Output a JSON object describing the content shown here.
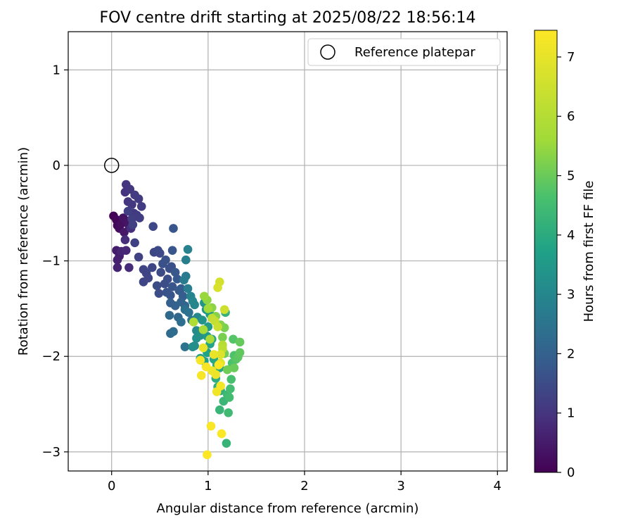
{
  "chart_data": {
    "type": "scatter",
    "title": "FOV centre drift starting at 2025/08/22 18:56:14",
    "xlabel": "Angular distance from reference (arcmin)",
    "ylabel": "Rotation from reference (arcmin)",
    "xlim": [
      -0.45,
      4.1
    ],
    "ylim": [
      -3.2,
      1.4
    ],
    "xticks": [
      0,
      1,
      2,
      3,
      4
    ],
    "xtick_labels": [
      "0",
      "1",
      "2",
      "3",
      "4"
    ],
    "yticks": [
      1,
      0,
      -1,
      -2,
      -3
    ],
    "ytick_labels": [
      "1",
      "0",
      "−1",
      "−2",
      "−3"
    ],
    "grid": true,
    "legend": {
      "placement": "top-right",
      "entries": [
        "Reference platepar"
      ]
    },
    "reference_point": {
      "x": 0,
      "y": 0,
      "label": "Reference platepar"
    },
    "colormap": "viridis",
    "colorbar": {
      "label": "Hours from first FF file",
      "min": 0,
      "max": 7.45,
      "ticks": [
        0,
        1,
        2,
        3,
        4,
        5,
        6,
        7
      ],
      "tick_labels": [
        "0",
        "1",
        "2",
        "3",
        "4",
        "5",
        "6",
        "7"
      ]
    },
    "points": [
      {
        "x": 0.02,
        "y": -0.53,
        "h": 0.05
      },
      {
        "x": 0.05,
        "y": -0.57,
        "h": 0.1
      },
      {
        "x": 0.06,
        "y": -0.63,
        "h": 0.15
      },
      {
        "x": 0.08,
        "y": -0.66,
        "h": 0.2
      },
      {
        "x": 0.1,
        "y": -0.61,
        "h": 0.25
      },
      {
        "x": 0.12,
        "y": -0.55,
        "h": 0.3
      },
      {
        "x": 0.15,
        "y": -0.58,
        "h": 0.35
      },
      {
        "x": 0.18,
        "y": -0.63,
        "h": 0.4
      },
      {
        "x": 0.13,
        "y": -0.7,
        "h": 0.45
      },
      {
        "x": 0.05,
        "y": -0.89,
        "h": 0.5
      },
      {
        "x": 0.08,
        "y": -0.95,
        "h": 0.55
      },
      {
        "x": 0.06,
        "y": -0.99,
        "h": 0.6
      },
      {
        "x": 0.06,
        "y": -1.07,
        "h": 0.65
      },
      {
        "x": 0.1,
        "y": -0.9,
        "h": 0.7
      },
      {
        "x": 0.15,
        "y": -0.89,
        "h": 0.75
      },
      {
        "x": 0.18,
        "y": -1.07,
        "h": 0.8
      },
      {
        "x": 0.14,
        "y": -0.78,
        "h": 0.85
      },
      {
        "x": 0.2,
        "y": -0.66,
        "h": 0.9
      },
      {
        "x": 0.14,
        "y": -0.28,
        "h": 0.95
      },
      {
        "x": 0.15,
        "y": -0.2,
        "h": 1.0
      },
      {
        "x": 0.19,
        "y": -0.25,
        "h": 1.02
      },
      {
        "x": 0.17,
        "y": -0.38,
        "h": 1.04
      },
      {
        "x": 0.21,
        "y": -0.41,
        "h": 1.06
      },
      {
        "x": 0.23,
        "y": -0.5,
        "h": 1.08
      },
      {
        "x": 0.24,
        "y": -0.31,
        "h": 1.1
      },
      {
        "x": 0.28,
        "y": -0.35,
        "h": 1.12
      },
      {
        "x": 0.26,
        "y": -0.52,
        "h": 1.14
      },
      {
        "x": 0.29,
        "y": -0.55,
        "h": 1.16
      },
      {
        "x": 0.31,
        "y": -0.43,
        "h": 1.18
      },
      {
        "x": 0.21,
        "y": -0.56,
        "h": 1.2
      },
      {
        "x": 0.17,
        "y": -0.48,
        "h": 1.22
      },
      {
        "x": 0.22,
        "y": -0.62,
        "h": 1.24
      },
      {
        "x": 0.24,
        "y": -0.81,
        "h": 1.26
      },
      {
        "x": 0.28,
        "y": -0.96,
        "h": 1.28
      },
      {
        "x": 0.33,
        "y": -1.09,
        "h": 1.3
      },
      {
        "x": 0.36,
        "y": -1.13,
        "h": 1.32
      },
      {
        "x": 0.33,
        "y": -1.22,
        "h": 1.34
      },
      {
        "x": 0.38,
        "y": -1.18,
        "h": 1.36
      },
      {
        "x": 0.42,
        "y": -1.07,
        "h": 1.38
      },
      {
        "x": 0.44,
        "y": -0.91,
        "h": 1.4
      },
      {
        "x": 0.43,
        "y": -0.64,
        "h": 1.42
      },
      {
        "x": 0.48,
        "y": -0.89,
        "h": 1.44
      },
      {
        "x": 0.5,
        "y": -0.92,
        "h": 1.46
      },
      {
        "x": 0.51,
        "y": -1.12,
        "h": 1.48
      },
      {
        "x": 0.47,
        "y": -1.26,
        "h": 1.5
      },
      {
        "x": 0.49,
        "y": -1.34,
        "h": 1.52
      },
      {
        "x": 0.55,
        "y": -1.24,
        "h": 1.54
      },
      {
        "x": 0.58,
        "y": -1.19,
        "h": 1.56
      },
      {
        "x": 0.6,
        "y": -1.08,
        "h": 1.58
      },
      {
        "x": 0.62,
        "y": -1.06,
        "h": 1.6
      },
      {
        "x": 0.56,
        "y": -0.99,
        "h": 1.62
      },
      {
        "x": 0.53,
        "y": -1.03,
        "h": 1.64
      },
      {
        "x": 0.57,
        "y": -1.33,
        "h": 1.66
      },
      {
        "x": 0.61,
        "y": -1.36,
        "h": 1.68
      },
      {
        "x": 0.63,
        "y": -1.27,
        "h": 1.7
      },
      {
        "x": 0.63,
        "y": -0.89,
        "h": 1.72
      },
      {
        "x": 0.64,
        "y": -0.66,
        "h": 1.74
      },
      {
        "x": 0.66,
        "y": -1.12,
        "h": 1.76
      },
      {
        "x": 0.68,
        "y": -1.19,
        "h": 1.78
      },
      {
        "x": 0.7,
        "y": -1.31,
        "h": 1.8
      },
      {
        "x": 0.72,
        "y": -1.29,
        "h": 1.85
      },
      {
        "x": 0.74,
        "y": -1.37,
        "h": 1.9
      },
      {
        "x": 0.61,
        "y": -1.44,
        "h": 1.95
      },
      {
        "x": 0.66,
        "y": -1.47,
        "h": 2.0
      },
      {
        "x": 0.72,
        "y": -1.43,
        "h": 2.05
      },
      {
        "x": 0.76,
        "y": -1.47,
        "h": 2.1
      },
      {
        "x": 0.69,
        "y": -1.59,
        "h": 2.15
      },
      {
        "x": 0.6,
        "y": -1.57,
        "h": 2.2
      },
      {
        "x": 0.61,
        "y": -1.76,
        "h": 2.25
      },
      {
        "x": 0.64,
        "y": -1.74,
        "h": 2.3
      },
      {
        "x": 0.72,
        "y": -1.64,
        "h": 2.35
      },
      {
        "x": 0.76,
        "y": -1.51,
        "h": 2.4
      },
      {
        "x": 0.8,
        "y": -1.54,
        "h": 2.45
      },
      {
        "x": 0.76,
        "y": -1.9,
        "h": 2.5
      },
      {
        "x": 0.83,
        "y": -1.62,
        "h": 2.55
      },
      {
        "x": 0.85,
        "y": -1.63,
        "h": 2.6
      },
      {
        "x": 0.77,
        "y": -1.16,
        "h": 2.65
      },
      {
        "x": 0.75,
        "y": -1.2,
        "h": 2.7
      },
      {
        "x": 0.79,
        "y": -1.29,
        "h": 2.75
      },
      {
        "x": 0.77,
        "y": -0.99,
        "h": 2.8
      },
      {
        "x": 0.79,
        "y": -0.88,
        "h": 2.85
      },
      {
        "x": 0.82,
        "y": -1.37,
        "h": 2.9
      },
      {
        "x": 0.84,
        "y": -1.42,
        "h": 2.95
      },
      {
        "x": 0.86,
        "y": -1.46,
        "h": 3.0
      },
      {
        "x": 0.89,
        "y": -1.59,
        "h": 3.05
      },
      {
        "x": 0.88,
        "y": -1.73,
        "h": 3.1
      },
      {
        "x": 0.86,
        "y": -1.89,
        "h": 3.15
      },
      {
        "x": 0.84,
        "y": -1.9,
        "h": 3.2
      },
      {
        "x": 0.88,
        "y": -1.81,
        "h": 3.25
      },
      {
        "x": 0.92,
        "y": -1.78,
        "h": 3.3
      },
      {
        "x": 0.94,
        "y": -1.62,
        "h": 3.35
      },
      {
        "x": 0.96,
        "y": -1.44,
        "h": 3.4
      },
      {
        "x": 0.98,
        "y": -1.51,
        "h": 3.45
      },
      {
        "x": 0.99,
        "y": -1.79,
        "h": 3.5
      },
      {
        "x": 1.0,
        "y": -1.69,
        "h": 3.55
      },
      {
        "x": 1.02,
        "y": -1.56,
        "h": 3.6
      },
      {
        "x": 0.92,
        "y": -2.02,
        "h": 3.65
      },
      {
        "x": 0.96,
        "y": -2.05,
        "h": 3.7
      },
      {
        "x": 0.99,
        "y": -1.96,
        "h": 3.75
      },
      {
        "x": 1.02,
        "y": -1.87,
        "h": 3.8
      },
      {
        "x": 1.04,
        "y": -1.82,
        "h": 3.85
      },
      {
        "x": 1.06,
        "y": -2.03,
        "h": 3.9
      },
      {
        "x": 1.09,
        "y": -2.09,
        "h": 3.95
      },
      {
        "x": 1.12,
        "y": -2.12,
        "h": 4.0
      },
      {
        "x": 1.08,
        "y": -2.23,
        "h": 4.05
      },
      {
        "x": 1.1,
        "y": -2.32,
        "h": 4.1
      },
      {
        "x": 1.13,
        "y": -2.36,
        "h": 4.15
      },
      {
        "x": 1.18,
        "y": -1.54,
        "h": 4.2
      },
      {
        "x": 1.19,
        "y": -2.91,
        "h": 4.25
      },
      {
        "x": 1.12,
        "y": -2.56,
        "h": 4.3
      },
      {
        "x": 1.16,
        "y": -2.47,
        "h": 4.35
      },
      {
        "x": 1.2,
        "y": -2.4,
        "h": 4.4
      },
      {
        "x": 1.21,
        "y": -2.59,
        "h": 4.45
      },
      {
        "x": 1.22,
        "y": -2.43,
        "h": 4.5
      },
      {
        "x": 1.23,
        "y": -2.34,
        "h": 4.55
      },
      {
        "x": 1.24,
        "y": -2.24,
        "h": 4.6
      },
      {
        "x": 1.25,
        "y": -2.07,
        "h": 4.65
      },
      {
        "x": 1.27,
        "y": -1.99,
        "h": 4.7
      },
      {
        "x": 1.26,
        "y": -1.82,
        "h": 4.75
      },
      {
        "x": 1.29,
        "y": -2.03,
        "h": 4.8
      },
      {
        "x": 1.31,
        "y": -2.01,
        "h": 4.85
      },
      {
        "x": 1.33,
        "y": -1.96,
        "h": 4.9
      },
      {
        "x": 1.33,
        "y": -1.85,
        "h": 4.95
      },
      {
        "x": 1.27,
        "y": -2.12,
        "h": 5.0
      },
      {
        "x": 1.2,
        "y": -2.14,
        "h": 5.05
      },
      {
        "x": 1.17,
        "y": -1.97,
        "h": 5.1
      },
      {
        "x": 1.15,
        "y": -1.8,
        "h": 5.15
      },
      {
        "x": 1.17,
        "y": -1.7,
        "h": 5.2
      },
      {
        "x": 1.13,
        "y": -1.67,
        "h": 5.25
      },
      {
        "x": 1.08,
        "y": -1.58,
        "h": 5.3
      },
      {
        "x": 1.04,
        "y": -1.49,
        "h": 5.35
      },
      {
        "x": 0.99,
        "y": -1.41,
        "h": 5.4
      },
      {
        "x": 0.96,
        "y": -1.37,
        "h": 5.5
      },
      {
        "x": 1.0,
        "y": -1.5,
        "h": 5.6
      },
      {
        "x": 0.95,
        "y": -1.72,
        "h": 5.7
      },
      {
        "x": 1.02,
        "y": -1.82,
        "h": 5.8
      },
      {
        "x": 0.85,
        "y": -1.64,
        "h": 5.9
      },
      {
        "x": 1.15,
        "y": -1.88,
        "h": 6.0
      },
      {
        "x": 1.15,
        "y": -1.92,
        "h": 6.1
      },
      {
        "x": 1.04,
        "y": -1.6,
        "h": 6.2
      },
      {
        "x": 1.07,
        "y": -1.63,
        "h": 6.3
      },
      {
        "x": 1.1,
        "y": -1.69,
        "h": 6.4
      },
      {
        "x": 1.17,
        "y": -1.51,
        "h": 6.5
      },
      {
        "x": 1.12,
        "y": -1.22,
        "h": 6.6
      },
      {
        "x": 1.1,
        "y": -1.28,
        "h": 6.7
      },
      {
        "x": 1.13,
        "y": -1.98,
        "h": 6.8
      },
      {
        "x": 1.13,
        "y": -2.07,
        "h": 6.9
      },
      {
        "x": 0.95,
        "y": -1.91,
        "h": 7.0
      },
      {
        "x": 1.06,
        "y": -1.98,
        "h": 7.05
      },
      {
        "x": 1.04,
        "y": -2.15,
        "h": 7.1
      },
      {
        "x": 1.08,
        "y": -2.19,
        "h": 7.15
      },
      {
        "x": 1.09,
        "y": -2.37,
        "h": 7.2
      },
      {
        "x": 1.13,
        "y": -2.31,
        "h": 7.25
      },
      {
        "x": 0.93,
        "y": -2.2,
        "h": 7.3
      },
      {
        "x": 0.92,
        "y": -2.04,
        "h": 7.32
      },
      {
        "x": 0.98,
        "y": -2.11,
        "h": 7.34
      },
      {
        "x": 1.03,
        "y": -2.73,
        "h": 7.36
      },
      {
        "x": 1.14,
        "y": -2.81,
        "h": 7.38
      },
      {
        "x": 0.99,
        "y": -3.03,
        "h": 7.4
      },
      {
        "x": 1.11,
        "y": -2.09,
        "h": 7.42
      }
    ]
  }
}
